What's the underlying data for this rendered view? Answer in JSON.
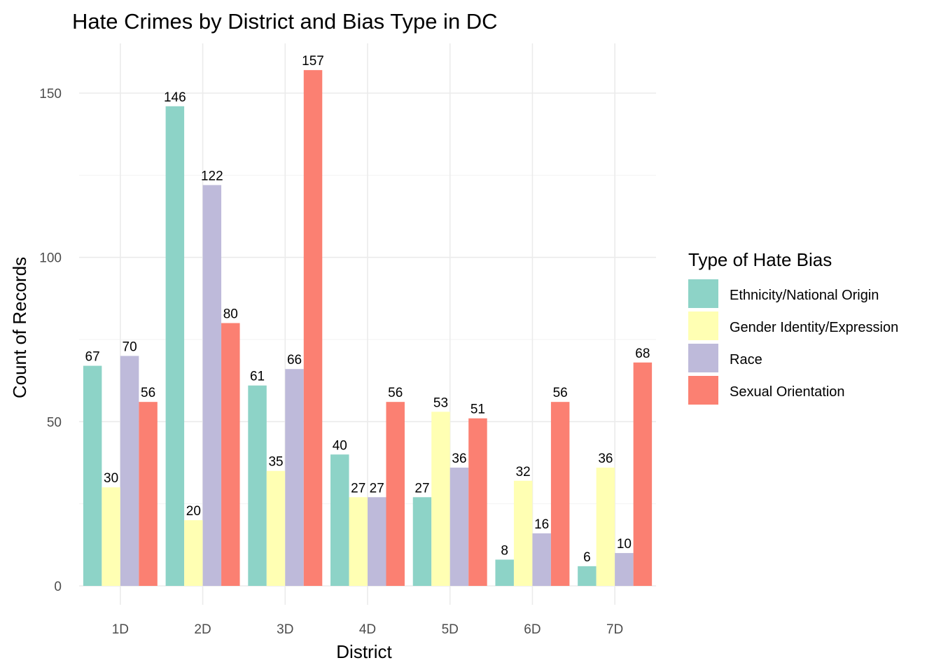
{
  "chart_data": {
    "type": "bar",
    "title": "Hate Crimes by District and Bias Type in DC",
    "xlabel": "District",
    "ylabel": "Count of Records",
    "categories": [
      "1D",
      "2D",
      "3D",
      "4D",
      "5D",
      "6D",
      "7D"
    ],
    "ylim": [
      0,
      165
    ],
    "yticks": [
      "0",
      "50",
      "100",
      "150"
    ],
    "grid": true,
    "legend": {
      "title": "Type of Hate Bias",
      "position": "right"
    },
    "series": [
      {
        "name": "Ethnicity/National Origin",
        "color": "#8dd3c7",
        "values": [
          67,
          146,
          61,
          40,
          27,
          8,
          6
        ]
      },
      {
        "name": "Gender Identity/Expression",
        "color": "#ffffb3",
        "values": [
          30,
          20,
          35,
          27,
          53,
          32,
          36
        ]
      },
      {
        "name": "Race",
        "color": "#bebada",
        "values": [
          70,
          122,
          66,
          27,
          36,
          16,
          10
        ]
      },
      {
        "name": "Sexual Orientation",
        "color": "#fb8072",
        "values": [
          56,
          80,
          157,
          56,
          51,
          56,
          68
        ]
      }
    ]
  }
}
